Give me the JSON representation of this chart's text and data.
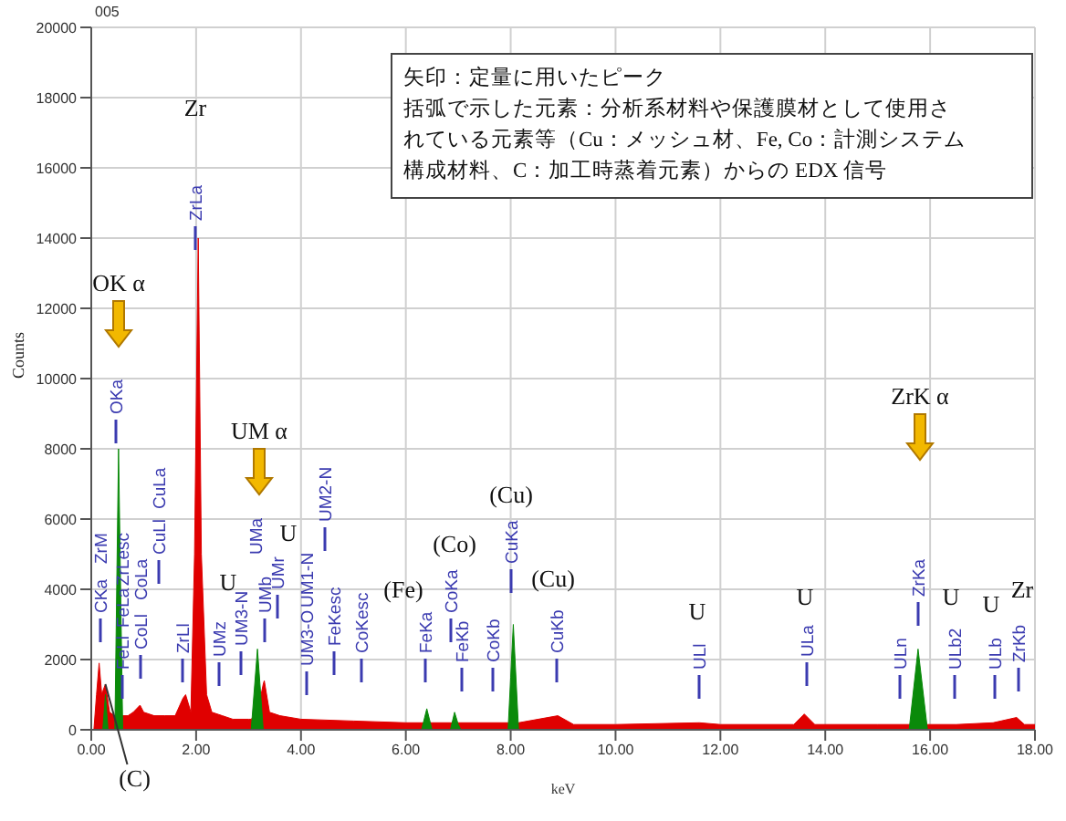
{
  "chart_data": {
    "type": "area",
    "title": "005",
    "xlabel": "keV",
    "ylabel": "Counts",
    "xlim": [
      0,
      18
    ],
    "xticks": [
      {
        "value": 0,
        "label": "0.00"
      },
      {
        "value": 2,
        "label": "2.00"
      },
      {
        "value": 4,
        "label": "4.00"
      },
      {
        "value": 6,
        "label": "6.00"
      },
      {
        "value": 8,
        "label": "8.00"
      },
      {
        "value": 10,
        "label": "10.00"
      },
      {
        "value": 12,
        "label": "12.00"
      },
      {
        "value": 14,
        "label": "14.00"
      },
      {
        "value": 16,
        "label": "16.00"
      },
      {
        "value": 18,
        "label": "18.00"
      }
    ],
    "ylim": [
      0,
      20000
    ],
    "yticks": [
      0,
      2000,
      4000,
      6000,
      8000,
      10000,
      12000,
      14000,
      16000,
      18000,
      20000
    ],
    "grid": true,
    "x": [
      0.05,
      0.1,
      0.15,
      0.2,
      0.22,
      0.27,
      0.32,
      0.35,
      0.45,
      0.52,
      0.6,
      0.7,
      0.8,
      0.93,
      1.0,
      1.2,
      1.4,
      1.6,
      1.75,
      1.8,
      1.9,
      1.97,
      2.04,
      2.1,
      2.2,
      2.3,
      2.5,
      2.7,
      3.0,
      3.05,
      3.17,
      3.28,
      3.3,
      3.4,
      3.6,
      4.0,
      5.0,
      6.0,
      6.3,
      6.4,
      6.5,
      6.85,
      6.93,
      7.0,
      7.05,
      7.95,
      8.0,
      8.05,
      8.15,
      8.9,
      9.2,
      10,
      11.6,
      12,
      13.4,
      13.6,
      13.8,
      15,
      15.6,
      15.77,
      15.95,
      16,
      16.5,
      17.2,
      17.65,
      17.8,
      18
    ],
    "series": [
      {
        "color": "#e00000",
        "values": [
          0,
          1000,
          1900,
          1000,
          1100,
          1300,
          800,
          500,
          400,
          500,
          400,
          400,
          500,
          700,
          500,
          400,
          400,
          400,
          900,
          1000,
          500,
          5000,
          14000,
          5000,
          1000,
          500,
          400,
          300,
          300,
          300,
          500,
          1300,
          1400,
          500,
          400,
          300,
          250,
          200,
          200,
          200,
          200,
          200,
          200,
          200,
          200,
          200,
          200,
          200,
          200,
          400,
          150,
          150,
          200,
          150,
          150,
          450,
          150,
          150,
          150,
          150,
          150,
          150,
          150,
          200,
          350,
          150,
          150
        ]
      },
      {
        "color": "#0a8a0a",
        "values": [
          null,
          null,
          null,
          null,
          0,
          1000,
          0,
          null,
          0,
          8000,
          0,
          null,
          null,
          null,
          null,
          null,
          null,
          null,
          null,
          null,
          null,
          null,
          null,
          null,
          null,
          null,
          null,
          null,
          null,
          0,
          2300,
          0,
          null,
          null,
          null,
          null,
          null,
          null,
          0,
          600,
          0,
          0,
          500,
          150,
          0,
          0,
          1500,
          3000,
          0,
          null,
          null,
          null,
          null,
          null,
          null,
          null,
          null,
          null,
          0,
          2300,
          0,
          null,
          null,
          null,
          null,
          null,
          null
        ]
      }
    ],
    "annotations": [
      "矢印：定量に用いたピーク",
      "括弧で示した元素：分析系材料や保護膜材として使用さ",
      "れている元素等（Cu：メッシュ材、Fe, Co：計測システム",
      "構成材料、C：加工時蒸着元素）からの EDX 信号",
      "CKa",
      "ZrM",
      "FeLl",
      "FeLa",
      "ZrLesc",
      "OKa",
      "CoLl",
      "CoLa",
      "CuLl",
      "CuLa",
      "ZrLl",
      "ZrLa",
      "UMz",
      "UM3-N",
      "UMa",
      "UMb",
      "UMr",
      "UM3-O",
      "UM1-N",
      "UM2-N",
      "FeKesc",
      "CoKesc",
      "FeKa",
      "CoKa",
      "FeKb",
      "CoKb",
      "CuKa",
      "CuKb",
      "ULl",
      "ULa",
      "ULn",
      "ZrKa",
      "ULb2",
      "ULb",
      "ZrKb",
      "OK α",
      "UM α",
      "ZrK α",
      "Zr",
      "U",
      "U",
      "(Fe)",
      "(Co)",
      "(Cu)",
      "(Cu)",
      "U",
      "U",
      "U",
      "U",
      "Zr",
      {
        "text": "(C)",
        "x": 0.27,
        "y": 1300
      }
    ]
  }
}
